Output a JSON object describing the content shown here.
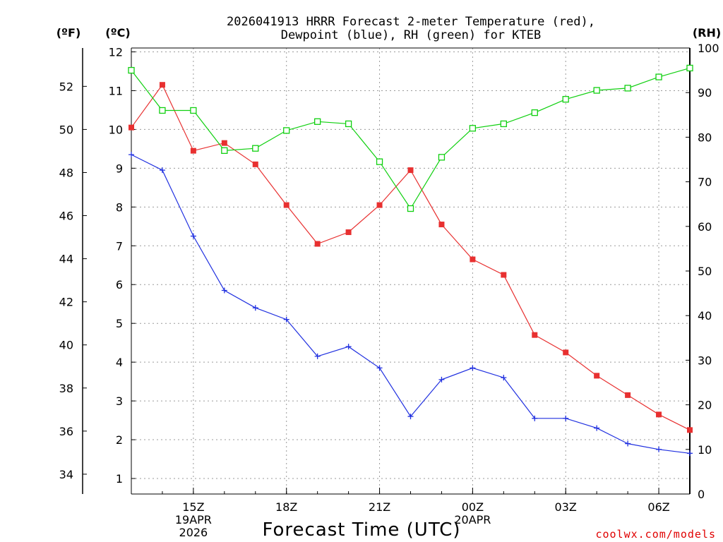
{
  "chart_data": {
    "type": "line",
    "title_lines": [
      "2026041913 HRRR Forecast 2-meter Temperature (red),",
      "Dewpoint (blue), RH (green) for KTEB"
    ],
    "left_unit_f": "(ºF)",
    "left_unit_c": "(ºC)",
    "right_unit": "(RH)",
    "xlabel": "Forecast Time (UTC)",
    "credit": "coolwx.com/models",
    "x_hours": [
      13,
      14,
      15,
      16,
      17,
      18,
      19,
      20,
      21,
      22,
      23,
      24,
      25,
      26,
      27,
      28,
      29,
      30,
      31
    ],
    "xlim": [
      13,
      31
    ],
    "x_ticks": [
      {
        "hour": 15,
        "lines": [
          "15Z",
          "19APR",
          "2026"
        ]
      },
      {
        "hour": 18,
        "lines": [
          "18Z"
        ]
      },
      {
        "hour": 21,
        "lines": [
          "21Z"
        ]
      },
      {
        "hour": 24,
        "lines": [
          "00Z",
          "20APR"
        ]
      },
      {
        "hour": 27,
        "lines": [
          "03Z"
        ]
      },
      {
        "hour": 30,
        "lines": [
          "06Z"
        ]
      }
    ],
    "celsius_axis": {
      "ylim": [
        0.6,
        12.1
      ],
      "ticks": [
        1,
        2,
        3,
        4,
        5,
        6,
        7,
        8,
        9,
        10,
        11,
        12
      ]
    },
    "fahrenheit_axis": {
      "ylim": [
        33.08,
        53.78
      ],
      "ticks": [
        34,
        36,
        38,
        40,
        42,
        44,
        46,
        48,
        50,
        52
      ]
    },
    "rh_axis": {
      "ylim": [
        0,
        100
      ],
      "ticks": [
        0,
        10,
        20,
        30,
        40,
        50,
        60,
        70,
        80,
        90,
        100
      ]
    },
    "series": [
      {
        "name": "Temperature",
        "unit": "C",
        "axis": "celsius",
        "color": "#e83030",
        "marker": "filled-square",
        "values": [
          10.05,
          11.15,
          9.45,
          9.65,
          9.1,
          8.05,
          7.05,
          7.35,
          8.05,
          8.95,
          7.55,
          6.65,
          6.25,
          4.7,
          4.25,
          3.65,
          3.15,
          2.65,
          2.25
        ]
      },
      {
        "name": "Dewpoint",
        "unit": "C",
        "axis": "celsius",
        "color": "#2030e0",
        "marker": "plus",
        "values": [
          9.35,
          8.95,
          7.25,
          5.85,
          5.4,
          5.1,
          4.15,
          4.4,
          3.85,
          2.6,
          3.55,
          3.85,
          3.6,
          2.55,
          2.55,
          2.3,
          1.9,
          1.75,
          1.65
        ]
      },
      {
        "name": "RH",
        "unit": "%",
        "axis": "rh",
        "color": "#10d010",
        "marker": "open-square",
        "values": [
          95,
          86,
          86,
          77,
          77.5,
          81.5,
          83.5,
          83,
          74.5,
          64,
          75.5,
          82,
          83,
          85.5,
          88.5,
          90.5,
          91,
          93.5,
          95.5
        ]
      }
    ]
  }
}
